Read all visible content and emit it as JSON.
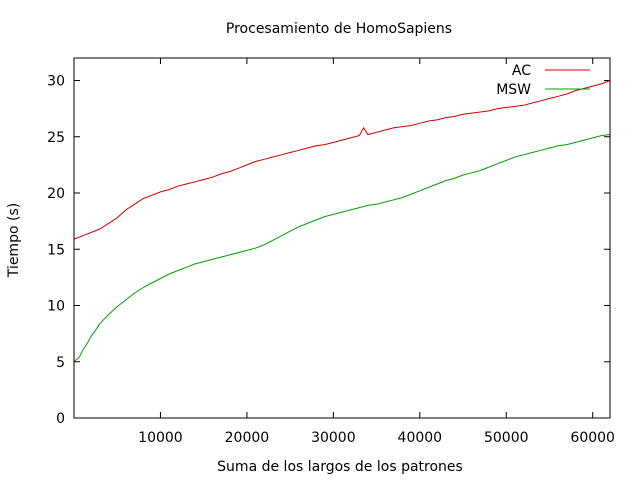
{
  "chart_data": {
    "type": "line",
    "title": "Procesamiento de HomoSapiens",
    "xlabel": "Suma de los largos de los patrones",
    "ylabel": "Tiempo (s)",
    "xlim": [
      0,
      62000
    ],
    "ylim": [
      0,
      32
    ],
    "x_ticks": [
      10000,
      20000,
      30000,
      40000,
      50000,
      60000
    ],
    "x_tick_labels": [
      "10000",
      "20000",
      "30000",
      "40000",
      "50000",
      "60000"
    ],
    "y_ticks": [
      0,
      5,
      10,
      15,
      20,
      25,
      30
    ],
    "y_tick_labels": [
      "0",
      "5",
      "10",
      "15",
      "20",
      "25",
      "30"
    ],
    "grid": false,
    "legend_position": "top-right",
    "series": [
      {
        "name": "AC",
        "color": "#d00000",
        "points": [
          [
            0,
            15.9
          ],
          [
            1000,
            16.2
          ],
          [
            2000,
            16.5
          ],
          [
            3000,
            16.8
          ],
          [
            4000,
            17.3
          ],
          [
            5000,
            17.8
          ],
          [
            6000,
            18.5
          ],
          [
            7000,
            19.0
          ],
          [
            8000,
            19.5
          ],
          [
            9000,
            19.8
          ],
          [
            10000,
            20.1
          ],
          [
            11000,
            20.3
          ],
          [
            12000,
            20.6
          ],
          [
            13000,
            20.8
          ],
          [
            14000,
            21.0
          ],
          [
            15000,
            21.2
          ],
          [
            16000,
            21.4
          ],
          [
            17000,
            21.7
          ],
          [
            18000,
            21.9
          ],
          [
            19000,
            22.2
          ],
          [
            20000,
            22.5
          ],
          [
            21000,
            22.8
          ],
          [
            22000,
            23.0
          ],
          [
            23000,
            23.2
          ],
          [
            24000,
            23.4
          ],
          [
            25000,
            23.6
          ],
          [
            26000,
            23.8
          ],
          [
            27000,
            24.0
          ],
          [
            28000,
            24.2
          ],
          [
            29000,
            24.3
          ],
          [
            30000,
            24.5
          ],
          [
            31000,
            24.7
          ],
          [
            32000,
            24.9
          ],
          [
            33000,
            25.1
          ],
          [
            33500,
            25.8
          ],
          [
            34000,
            25.2
          ],
          [
            35000,
            25.4
          ],
          [
            36000,
            25.6
          ],
          [
            37000,
            25.8
          ],
          [
            38000,
            25.9
          ],
          [
            39000,
            26.0
          ],
          [
            40000,
            26.2
          ],
          [
            41000,
            26.4
          ],
          [
            42000,
            26.5
          ],
          [
            43000,
            26.7
          ],
          [
            44000,
            26.8
          ],
          [
            45000,
            27.0
          ],
          [
            46000,
            27.1
          ],
          [
            47000,
            27.2
          ],
          [
            48000,
            27.3
          ],
          [
            49000,
            27.5
          ],
          [
            50000,
            27.6
          ],
          [
            51000,
            27.7
          ],
          [
            52000,
            27.8
          ],
          [
            53000,
            28.0
          ],
          [
            54000,
            28.2
          ],
          [
            55000,
            28.4
          ],
          [
            56000,
            28.6
          ],
          [
            57000,
            28.8
          ],
          [
            58000,
            29.1
          ],
          [
            59000,
            29.3
          ],
          [
            60000,
            29.5
          ],
          [
            61000,
            29.7
          ],
          [
            62000,
            30.0
          ]
        ]
      },
      {
        "name": "MSW",
        "color": "#00a000",
        "points": [
          [
            0,
            5.0
          ],
          [
            300,
            5.2
          ],
          [
            600,
            5.4
          ],
          [
            1000,
            6.0
          ],
          [
            1500,
            6.6
          ],
          [
            2000,
            7.3
          ],
          [
            2500,
            7.8
          ],
          [
            3000,
            8.4
          ],
          [
            4000,
            9.2
          ],
          [
            5000,
            9.9
          ],
          [
            6000,
            10.5
          ],
          [
            7000,
            11.1
          ],
          [
            8000,
            11.6
          ],
          [
            9000,
            12.0
          ],
          [
            10000,
            12.4
          ],
          [
            11000,
            12.8
          ],
          [
            12000,
            13.1
          ],
          [
            13000,
            13.4
          ],
          [
            14000,
            13.7
          ],
          [
            15000,
            13.9
          ],
          [
            16000,
            14.1
          ],
          [
            17000,
            14.3
          ],
          [
            18000,
            14.5
          ],
          [
            19000,
            14.7
          ],
          [
            20000,
            14.9
          ],
          [
            21000,
            15.1
          ],
          [
            22000,
            15.4
          ],
          [
            23000,
            15.8
          ],
          [
            24000,
            16.2
          ],
          [
            25000,
            16.6
          ],
          [
            26000,
            17.0
          ],
          [
            27000,
            17.3
          ],
          [
            28000,
            17.6
          ],
          [
            29000,
            17.9
          ],
          [
            30000,
            18.1
          ],
          [
            31000,
            18.3
          ],
          [
            32000,
            18.5
          ],
          [
            33000,
            18.7
          ],
          [
            34000,
            18.9
          ],
          [
            35000,
            19.0
          ],
          [
            36000,
            19.2
          ],
          [
            37000,
            19.4
          ],
          [
            38000,
            19.6
          ],
          [
            39000,
            19.9
          ],
          [
            40000,
            20.2
          ],
          [
            41000,
            20.5
          ],
          [
            42000,
            20.8
          ],
          [
            43000,
            21.1
          ],
          [
            44000,
            21.3
          ],
          [
            45000,
            21.6
          ],
          [
            46000,
            21.8
          ],
          [
            47000,
            22.0
          ],
          [
            48000,
            22.3
          ],
          [
            49000,
            22.6
          ],
          [
            50000,
            22.9
          ],
          [
            51000,
            23.2
          ],
          [
            52000,
            23.4
          ],
          [
            53000,
            23.6
          ],
          [
            54000,
            23.8
          ],
          [
            55000,
            24.0
          ],
          [
            56000,
            24.2
          ],
          [
            57000,
            24.3
          ],
          [
            58000,
            24.5
          ],
          [
            59000,
            24.7
          ],
          [
            60000,
            24.9
          ],
          [
            61000,
            25.1
          ],
          [
            62000,
            25.2
          ]
        ]
      }
    ]
  }
}
